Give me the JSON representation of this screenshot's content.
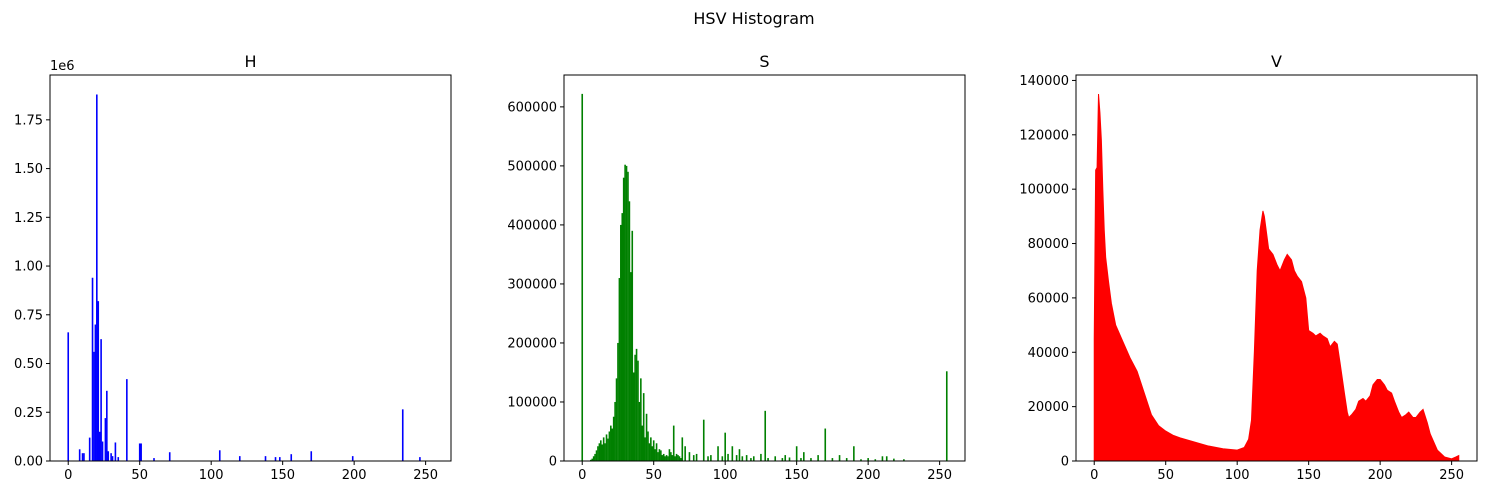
{
  "figure": {
    "suptitle": "HSV Histogram"
  },
  "chart_data": [
    {
      "type": "bar",
      "title": "H",
      "color": "#0000ff",
      "xlabel": "",
      "ylabel": "",
      "xlim": [
        -12.75,
        267.75
      ],
      "ylim": [
        0,
        1980000
      ],
      "offset_text": "1e6",
      "xticks": [
        0,
        50,
        100,
        150,
        200,
        250
      ],
      "xtick_labels": [
        "0",
        "50",
        "100",
        "150",
        "200",
        "250"
      ],
      "yticks": [
        0,
        250000,
        500000,
        750000,
        1000000,
        1250000,
        1500000,
        1750000
      ],
      "ytick_labels": [
        "0.00",
        "0.25",
        "0.50",
        "0.75",
        "1.00",
        "1.25",
        "1.50",
        "1.75"
      ],
      "x": [
        0,
        8,
        10,
        11,
        15,
        17,
        18,
        19,
        20,
        21,
        22,
        23,
        24,
        26,
        27,
        28,
        30,
        31,
        33,
        35,
        41,
        50,
        51,
        60,
        71,
        106,
        120,
        138,
        145,
        148,
        156,
        170,
        199,
        234,
        246
      ],
      "values": [
        660000,
        60000,
        40000,
        40000,
        120000,
        940000,
        560000,
        700000,
        1880000,
        820000,
        150000,
        625000,
        100000,
        220000,
        360000,
        50000,
        40000,
        25000,
        95000,
        20000,
        420000,
        90000,
        90000,
        15000,
        45000,
        55000,
        25000,
        25000,
        20000,
        20000,
        35000,
        50000,
        25000,
        265000,
        20000
      ]
    },
    {
      "type": "bar",
      "title": "S",
      "color": "#008000",
      "xlabel": "",
      "ylabel": "",
      "xlim": [
        -12.75,
        267.75
      ],
      "ylim": [
        0,
        654000
      ],
      "xticks": [
        0,
        50,
        100,
        150,
        200,
        250
      ],
      "xtick_labels": [
        "0",
        "50",
        "100",
        "150",
        "200",
        "250"
      ],
      "yticks": [
        0,
        100000,
        200000,
        300000,
        400000,
        500000,
        600000
      ],
      "ytick_labels": [
        "0",
        "100000",
        "200000",
        "300000",
        "400000",
        "500000",
        "600000"
      ],
      "x": [
        0,
        6,
        7,
        8,
        9,
        10,
        11,
        12,
        13,
        14,
        15,
        16,
        17,
        18,
        19,
        20,
        21,
        22,
        23,
        24,
        25,
        26,
        27,
        28,
        29,
        30,
        31,
        32,
        33,
        34,
        35,
        36,
        37,
        38,
        39,
        40,
        41,
        42,
        43,
        44,
        45,
        46,
        47,
        48,
        49,
        50,
        51,
        52,
        53,
        54,
        55,
        56,
        57,
        58,
        59,
        60,
        61,
        62,
        63,
        64,
        65,
        66,
        67,
        68,
        69,
        70,
        72,
        75,
        78,
        80,
        85,
        88,
        90,
        95,
        98,
        100,
        102,
        105,
        108,
        110,
        112,
        115,
        118,
        120,
        125,
        128,
        130,
        135,
        140,
        142,
        145,
        150,
        153,
        155,
        160,
        165,
        170,
        175,
        180,
        185,
        190,
        195,
        200,
        205,
        210,
        213,
        218,
        225,
        255
      ],
      "values": [
        622000,
        2000,
        4000,
        8000,
        12000,
        18000,
        25000,
        30000,
        35000,
        28000,
        40000,
        30000,
        45000,
        38000,
        50000,
        60000,
        55000,
        75000,
        100000,
        140000,
        200000,
        310000,
        400000,
        420000,
        480000,
        502000,
        500000,
        490000,
        440000,
        320000,
        390000,
        150000,
        180000,
        190000,
        170000,
        100000,
        140000,
        60000,
        115000,
        40000,
        80000,
        50000,
        30000,
        40000,
        25000,
        35000,
        20000,
        30000,
        15000,
        20000,
        18000,
        10000,
        12000,
        8000,
        10000,
        8000,
        20000,
        15000,
        10000,
        60000,
        8000,
        12000,
        10000,
        8000,
        5000,
        40000,
        25000,
        15000,
        10000,
        12000,
        70000,
        8000,
        10000,
        25000,
        8000,
        48000,
        12000,
        25000,
        10000,
        20000,
        8000,
        10000,
        5000,
        8000,
        12000,
        85000,
        5000,
        8000,
        5000,
        10000,
        6000,
        25000,
        5000,
        15000,
        5000,
        10000,
        55000,
        5000,
        10000,
        5000,
        25000,
        3000,
        5000,
        3000,
        8000,
        8000,
        4000,
        3000,
        152000
      ]
    },
    {
      "type": "area",
      "title": "V",
      "color": "#ff0000",
      "xlabel": "",
      "ylabel": "",
      "xlim": [
        -12.75,
        267.75
      ],
      "ylim": [
        0,
        142000
      ],
      "xticks": [
        0,
        50,
        100,
        150,
        200,
        250
      ],
      "xtick_labels": [
        "0",
        "50",
        "100",
        "150",
        "200",
        "250"
      ],
      "yticks": [
        0,
        20000,
        40000,
        60000,
        80000,
        100000,
        120000,
        140000
      ],
      "ytick_labels": [
        "0",
        "20000",
        "40000",
        "60000",
        "80000",
        "100000",
        "120000",
        "140000"
      ],
      "x": [
        0,
        1,
        2,
        3,
        4,
        5,
        6,
        7,
        8,
        10,
        12,
        15,
        20,
        25,
        30,
        35,
        40,
        45,
        50,
        55,
        60,
        70,
        80,
        90,
        100,
        105,
        108,
        110,
        112,
        114,
        116,
        118,
        119,
        120,
        122,
        125,
        128,
        130,
        133,
        135,
        138,
        140,
        142,
        145,
        148,
        150,
        153,
        155,
        158,
        160,
        163,
        165,
        168,
        170,
        172,
        175,
        177,
        178,
        180,
        183,
        185,
        188,
        190,
        193,
        195,
        198,
        200,
        203,
        205,
        208,
        210,
        213,
        215,
        218,
        220,
        223,
        225,
        228,
        230,
        233,
        235,
        240,
        245,
        250,
        253,
        255
      ],
      "values": [
        45000,
        107000,
        108000,
        135000,
        128000,
        118000,
        100000,
        85000,
        75000,
        66000,
        58000,
        50000,
        44000,
        38000,
        33000,
        25000,
        17000,
        13000,
        11000,
        9500,
        8500,
        7000,
        5500,
        4500,
        4000,
        5000,
        8000,
        15000,
        40000,
        70000,
        85000,
        92000,
        90000,
        86000,
        78000,
        76000,
        72000,
        70000,
        74000,
        76000,
        74000,
        70000,
        68000,
        66000,
        60000,
        48000,
        47000,
        46000,
        47000,
        46000,
        45000,
        42000,
        44000,
        43000,
        36000,
        25000,
        18000,
        16000,
        17000,
        19000,
        22000,
        23000,
        22000,
        24000,
        28000,
        30000,
        30000,
        28000,
        26000,
        25000,
        22000,
        18000,
        16000,
        17000,
        18000,
        16000,
        16000,
        18000,
        19000,
        14000,
        10000,
        4000,
        1500,
        800,
        1500,
        2000
      ]
    }
  ]
}
